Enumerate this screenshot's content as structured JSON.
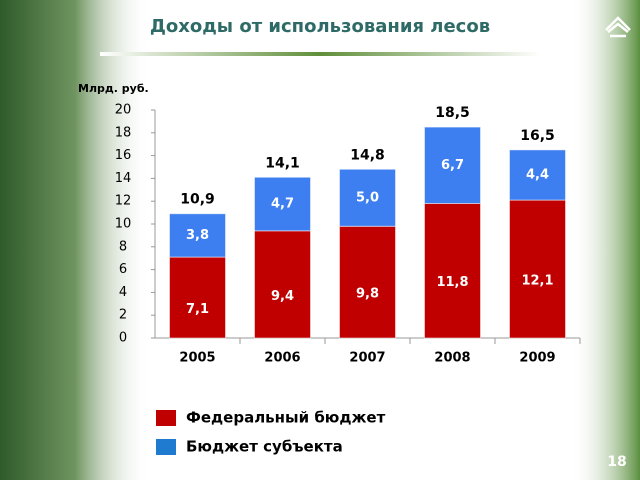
{
  "page_number": "18",
  "chart_data": {
    "type": "stacked_bar",
    "title": "Доходы от использования лесов",
    "y_label": "Млрд. руб.",
    "categories": [
      "2005",
      "2006",
      "2007",
      "2008",
      "2009"
    ],
    "series": [
      {
        "name": "Федеральный бюджет",
        "color": "#c00000",
        "values": [
          7.1,
          9.4,
          9.8,
          11.8,
          12.1
        ],
        "value_labels": [
          "7,1",
          "9,4",
          "9,8",
          "11,8",
          "12,1"
        ]
      },
      {
        "name": "Бюджет субъекта",
        "color": "#3d7ff0",
        "values": [
          3.8,
          4.7,
          5.0,
          6.7,
          4.4
        ],
        "value_labels": [
          "3,8",
          "4,7",
          "5,0",
          "6,7",
          "4,4"
        ]
      }
    ],
    "totals": {
      "values": [
        10.9,
        14.1,
        14.8,
        18.5,
        16.5
      ],
      "value_labels": [
        "10,9",
        "14,1",
        "14,8",
        "18,5",
        "16,5"
      ]
    },
    "ylim": [
      0,
      20
    ],
    "yticks": [
      0,
      2,
      4,
      6,
      8,
      10,
      12,
      14,
      16,
      18,
      20
    ]
  }
}
